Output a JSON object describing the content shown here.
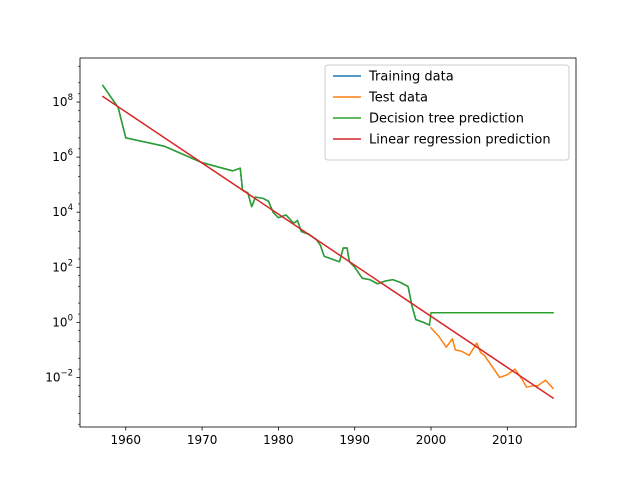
{
  "chart_data": {
    "type": "line",
    "title": "",
    "xlabel": "",
    "ylabel": "",
    "yscale": "log",
    "xlim": [
      1954.0,
      2019.0
    ],
    "ylim_log10": [
      -3.8,
      9.6
    ],
    "x_ticks": [
      {
        "value": 1960,
        "label": "1960"
      },
      {
        "value": 1970,
        "label": "1970"
      },
      {
        "value": 1980,
        "label": "1980"
      },
      {
        "value": 1990,
        "label": "1990"
      },
      {
        "value": 2000,
        "label": "2000"
      },
      {
        "value": 2010,
        "label": "2010"
      }
    ],
    "y_ticks": [
      {
        "exp": 8,
        "base": "10",
        "sup": "8"
      },
      {
        "exp": 6,
        "base": "10",
        "sup": "6"
      },
      {
        "exp": 4,
        "base": "10",
        "sup": "4"
      },
      {
        "exp": 2,
        "base": "10",
        "sup": "2"
      },
      {
        "exp": 0,
        "base": "10",
        "sup": "0"
      },
      {
        "exp": -2,
        "base": "10",
        "sup": "−2"
      }
    ],
    "grid": false,
    "legend_position": "top-right",
    "series": [
      {
        "name": "Training data",
        "color": "#1f77b4",
        "points_log10": [
          [
            1957.0,
            8.6
          ],
          [
            1959.0,
            7.8
          ],
          [
            1960.0,
            6.7
          ],
          [
            1965.0,
            6.4
          ],
          [
            1970.0,
            5.8
          ],
          [
            1974.0,
            5.5
          ],
          [
            1975.0,
            5.6
          ],
          [
            1975.3,
            4.8
          ],
          [
            1976.0,
            4.7
          ],
          [
            1976.5,
            4.2
          ],
          [
            1977.0,
            4.55
          ],
          [
            1978.0,
            4.5
          ],
          [
            1978.7,
            4.4
          ],
          [
            1979.3,
            4.0
          ],
          [
            1980.0,
            3.8
          ],
          [
            1981.0,
            3.9
          ],
          [
            1982.0,
            3.6
          ],
          [
            1982.5,
            3.7
          ],
          [
            1983.0,
            3.3
          ],
          [
            1984.0,
            3.2
          ],
          [
            1985.0,
            3.0
          ],
          [
            1985.5,
            2.8
          ],
          [
            1986.0,
            2.4
          ],
          [
            1987.0,
            2.3
          ],
          [
            1988.0,
            2.2
          ],
          [
            1988.5,
            2.7
          ],
          [
            1989.0,
            2.7
          ],
          [
            1989.3,
            2.2
          ],
          [
            1990.0,
            2.0
          ],
          [
            1991.0,
            1.6
          ],
          [
            1992.0,
            1.55
          ],
          [
            1993.0,
            1.4
          ],
          [
            1994.0,
            1.5
          ],
          [
            1995.0,
            1.55
          ],
          [
            1996.0,
            1.45
          ],
          [
            1997.0,
            1.3
          ],
          [
            1997.5,
            0.6
          ],
          [
            1998.0,
            0.1
          ],
          [
            1999.0,
            0.0
          ],
          [
            1999.8,
            -0.1
          ]
        ]
      },
      {
        "name": "Test data",
        "color": "#ff7f0e",
        "points_log10": [
          [
            2000.0,
            -0.2
          ],
          [
            2001.0,
            -0.5
          ],
          [
            2002.0,
            -0.9
          ],
          [
            2002.8,
            -0.6
          ],
          [
            2003.2,
            -1.0
          ],
          [
            2004.0,
            -1.05
          ],
          [
            2005.0,
            -1.2
          ],
          [
            2006.0,
            -0.75
          ],
          [
            2006.5,
            -1.1
          ],
          [
            2007.0,
            -1.2
          ],
          [
            2008.0,
            -1.6
          ],
          [
            2009.0,
            -2.0
          ],
          [
            2010.0,
            -1.9
          ],
          [
            2011.0,
            -1.7
          ],
          [
            2012.0,
            -2.1
          ],
          [
            2012.5,
            -2.35
          ],
          [
            2013.5,
            -2.3
          ],
          [
            2014.0,
            -2.3
          ],
          [
            2015.0,
            -2.1
          ],
          [
            2016.0,
            -2.4
          ]
        ]
      },
      {
        "name": "Decision tree prediction",
        "color": "#2ca02c",
        "points_log10": [
          [
            1957.0,
            8.6
          ],
          [
            1959.0,
            7.8
          ],
          [
            1960.0,
            6.7
          ],
          [
            1965.0,
            6.4
          ],
          [
            1970.0,
            5.8
          ],
          [
            1974.0,
            5.5
          ],
          [
            1975.0,
            5.6
          ],
          [
            1975.3,
            4.8
          ],
          [
            1976.0,
            4.7
          ],
          [
            1976.5,
            4.2
          ],
          [
            1977.0,
            4.55
          ],
          [
            1978.0,
            4.5
          ],
          [
            1978.7,
            4.4
          ],
          [
            1979.3,
            4.0
          ],
          [
            1980.0,
            3.8
          ],
          [
            1981.0,
            3.9
          ],
          [
            1982.0,
            3.6
          ],
          [
            1982.5,
            3.7
          ],
          [
            1983.0,
            3.3
          ],
          [
            1984.0,
            3.2
          ],
          [
            1985.0,
            3.0
          ],
          [
            1985.5,
            2.8
          ],
          [
            1986.0,
            2.4
          ],
          [
            1987.0,
            2.3
          ],
          [
            1988.0,
            2.2
          ],
          [
            1988.5,
            2.7
          ],
          [
            1989.0,
            2.7
          ],
          [
            1989.3,
            2.2
          ],
          [
            1990.0,
            2.0
          ],
          [
            1991.0,
            1.6
          ],
          [
            1992.0,
            1.55
          ],
          [
            1993.0,
            1.4
          ],
          [
            1994.0,
            1.5
          ],
          [
            1995.0,
            1.55
          ],
          [
            1996.0,
            1.45
          ],
          [
            1997.0,
            1.3
          ],
          [
            1997.5,
            0.6
          ],
          [
            1998.0,
            0.1
          ],
          [
            1999.0,
            0.0
          ],
          [
            1999.8,
            -0.1
          ],
          [
            2000.0,
            0.35
          ],
          [
            2016.0,
            0.35
          ]
        ]
      },
      {
        "name": "Linear regression prediction",
        "color": "#d62728",
        "points_log10": [
          [
            1957.0,
            8.2
          ],
          [
            2016.0,
            -2.75
          ]
        ]
      }
    ]
  }
}
